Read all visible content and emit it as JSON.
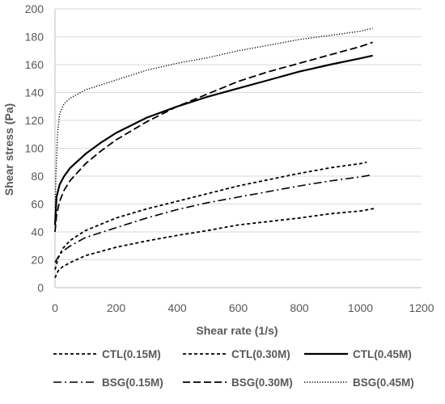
{
  "chart_data": {
    "type": "line",
    "title": "",
    "xlabel": "Shear rate (1/s)",
    "ylabel": "Shear stress (Pa)",
    "xlim": [
      0,
      1200
    ],
    "ylim": [
      0,
      200
    ],
    "x_ticks": [
      0,
      200,
      400,
      600,
      800,
      1000,
      1200
    ],
    "y_ticks": [
      0,
      20,
      40,
      60,
      80,
      100,
      120,
      140,
      160,
      180,
      200
    ],
    "grid": "horizontal",
    "legend_position": "bottom",
    "series": [
      {
        "name": "CTL(0.15M)",
        "style": "short-dash",
        "color": "#000000",
        "points": [
          [
            0,
            7
          ],
          [
            10,
            12
          ],
          [
            25,
            15
          ],
          [
            50,
            18
          ],
          [
            100,
            23
          ],
          [
            200,
            29
          ],
          [
            300,
            33.5
          ],
          [
            400,
            37.5
          ],
          [
            500,
            41
          ],
          [
            600,
            45
          ],
          [
            700,
            47.5
          ],
          [
            800,
            50
          ],
          [
            900,
            53
          ],
          [
            1000,
            55
          ],
          [
            1050,
            57
          ]
        ]
      },
      {
        "name": "CTL(0.30M)",
        "style": "short-dash",
        "color": "#000000",
        "points": [
          [
            0,
            13
          ],
          [
            10,
            21
          ],
          [
            25,
            28
          ],
          [
            50,
            34
          ],
          [
            100,
            41
          ],
          [
            200,
            50
          ],
          [
            300,
            56.5
          ],
          [
            400,
            62
          ],
          [
            500,
            67.5
          ],
          [
            600,
            73
          ],
          [
            700,
            77.5
          ],
          [
            800,
            82
          ],
          [
            900,
            86
          ],
          [
            1000,
            89
          ],
          [
            1020,
            90
          ]
        ]
      },
      {
        "name": "CTL(0.45M)",
        "style": "solid",
        "color": "#000000",
        "points": [
          [
            0,
            45
          ],
          [
            5,
            65
          ],
          [
            15,
            74
          ],
          [
            30,
            80
          ],
          [
            50,
            86
          ],
          [
            100,
            96
          ],
          [
            150,
            104
          ],
          [
            200,
            111
          ],
          [
            300,
            122
          ],
          [
            400,
            130
          ],
          [
            500,
            137
          ],
          [
            600,
            143
          ],
          [
            700,
            149
          ],
          [
            800,
            155
          ],
          [
            900,
            160
          ],
          [
            1000,
            164.5
          ],
          [
            1040,
            166.5
          ]
        ]
      },
      {
        "name": "BSG(0.15M)",
        "style": "dash-dot",
        "color": "#000000",
        "points": [
          [
            0,
            18
          ],
          [
            10,
            22
          ],
          [
            25,
            26
          ],
          [
            50,
            30
          ],
          [
            100,
            36
          ],
          [
            200,
            43
          ],
          [
            300,
            50
          ],
          [
            400,
            56
          ],
          [
            500,
            61
          ],
          [
            600,
            65
          ],
          [
            700,
            69
          ],
          [
            800,
            73
          ],
          [
            900,
            76.5
          ],
          [
            1000,
            79.5
          ],
          [
            1040,
            81
          ]
        ]
      },
      {
        "name": "BSG(0.30M)",
        "style": "long-dash",
        "color": "#000000",
        "points": [
          [
            0,
            40
          ],
          [
            5,
            52
          ],
          [
            15,
            62
          ],
          [
            30,
            70
          ],
          [
            50,
            77
          ],
          [
            100,
            89
          ],
          [
            150,
            98
          ],
          [
            200,
            106
          ],
          [
            300,
            119
          ],
          [
            400,
            130
          ],
          [
            500,
            139
          ],
          [
            600,
            148
          ],
          [
            700,
            155
          ],
          [
            800,
            161
          ],
          [
            900,
            167
          ],
          [
            1000,
            173
          ],
          [
            1040,
            176
          ]
        ]
      },
      {
        "name": "BSG(0.45M)",
        "style": "dotted",
        "color": "#000000",
        "points": [
          [
            0,
            50
          ],
          [
            3,
            80
          ],
          [
            8,
            110
          ],
          [
            15,
            125
          ],
          [
            30,
            132
          ],
          [
            50,
            136
          ],
          [
            100,
            142
          ],
          [
            200,
            149
          ],
          [
            300,
            156
          ],
          [
            400,
            161
          ],
          [
            500,
            165
          ],
          [
            600,
            170
          ],
          [
            700,
            174
          ],
          [
            800,
            178
          ],
          [
            900,
            181
          ],
          [
            1000,
            184
          ],
          [
            1040,
            186
          ]
        ]
      }
    ]
  }
}
